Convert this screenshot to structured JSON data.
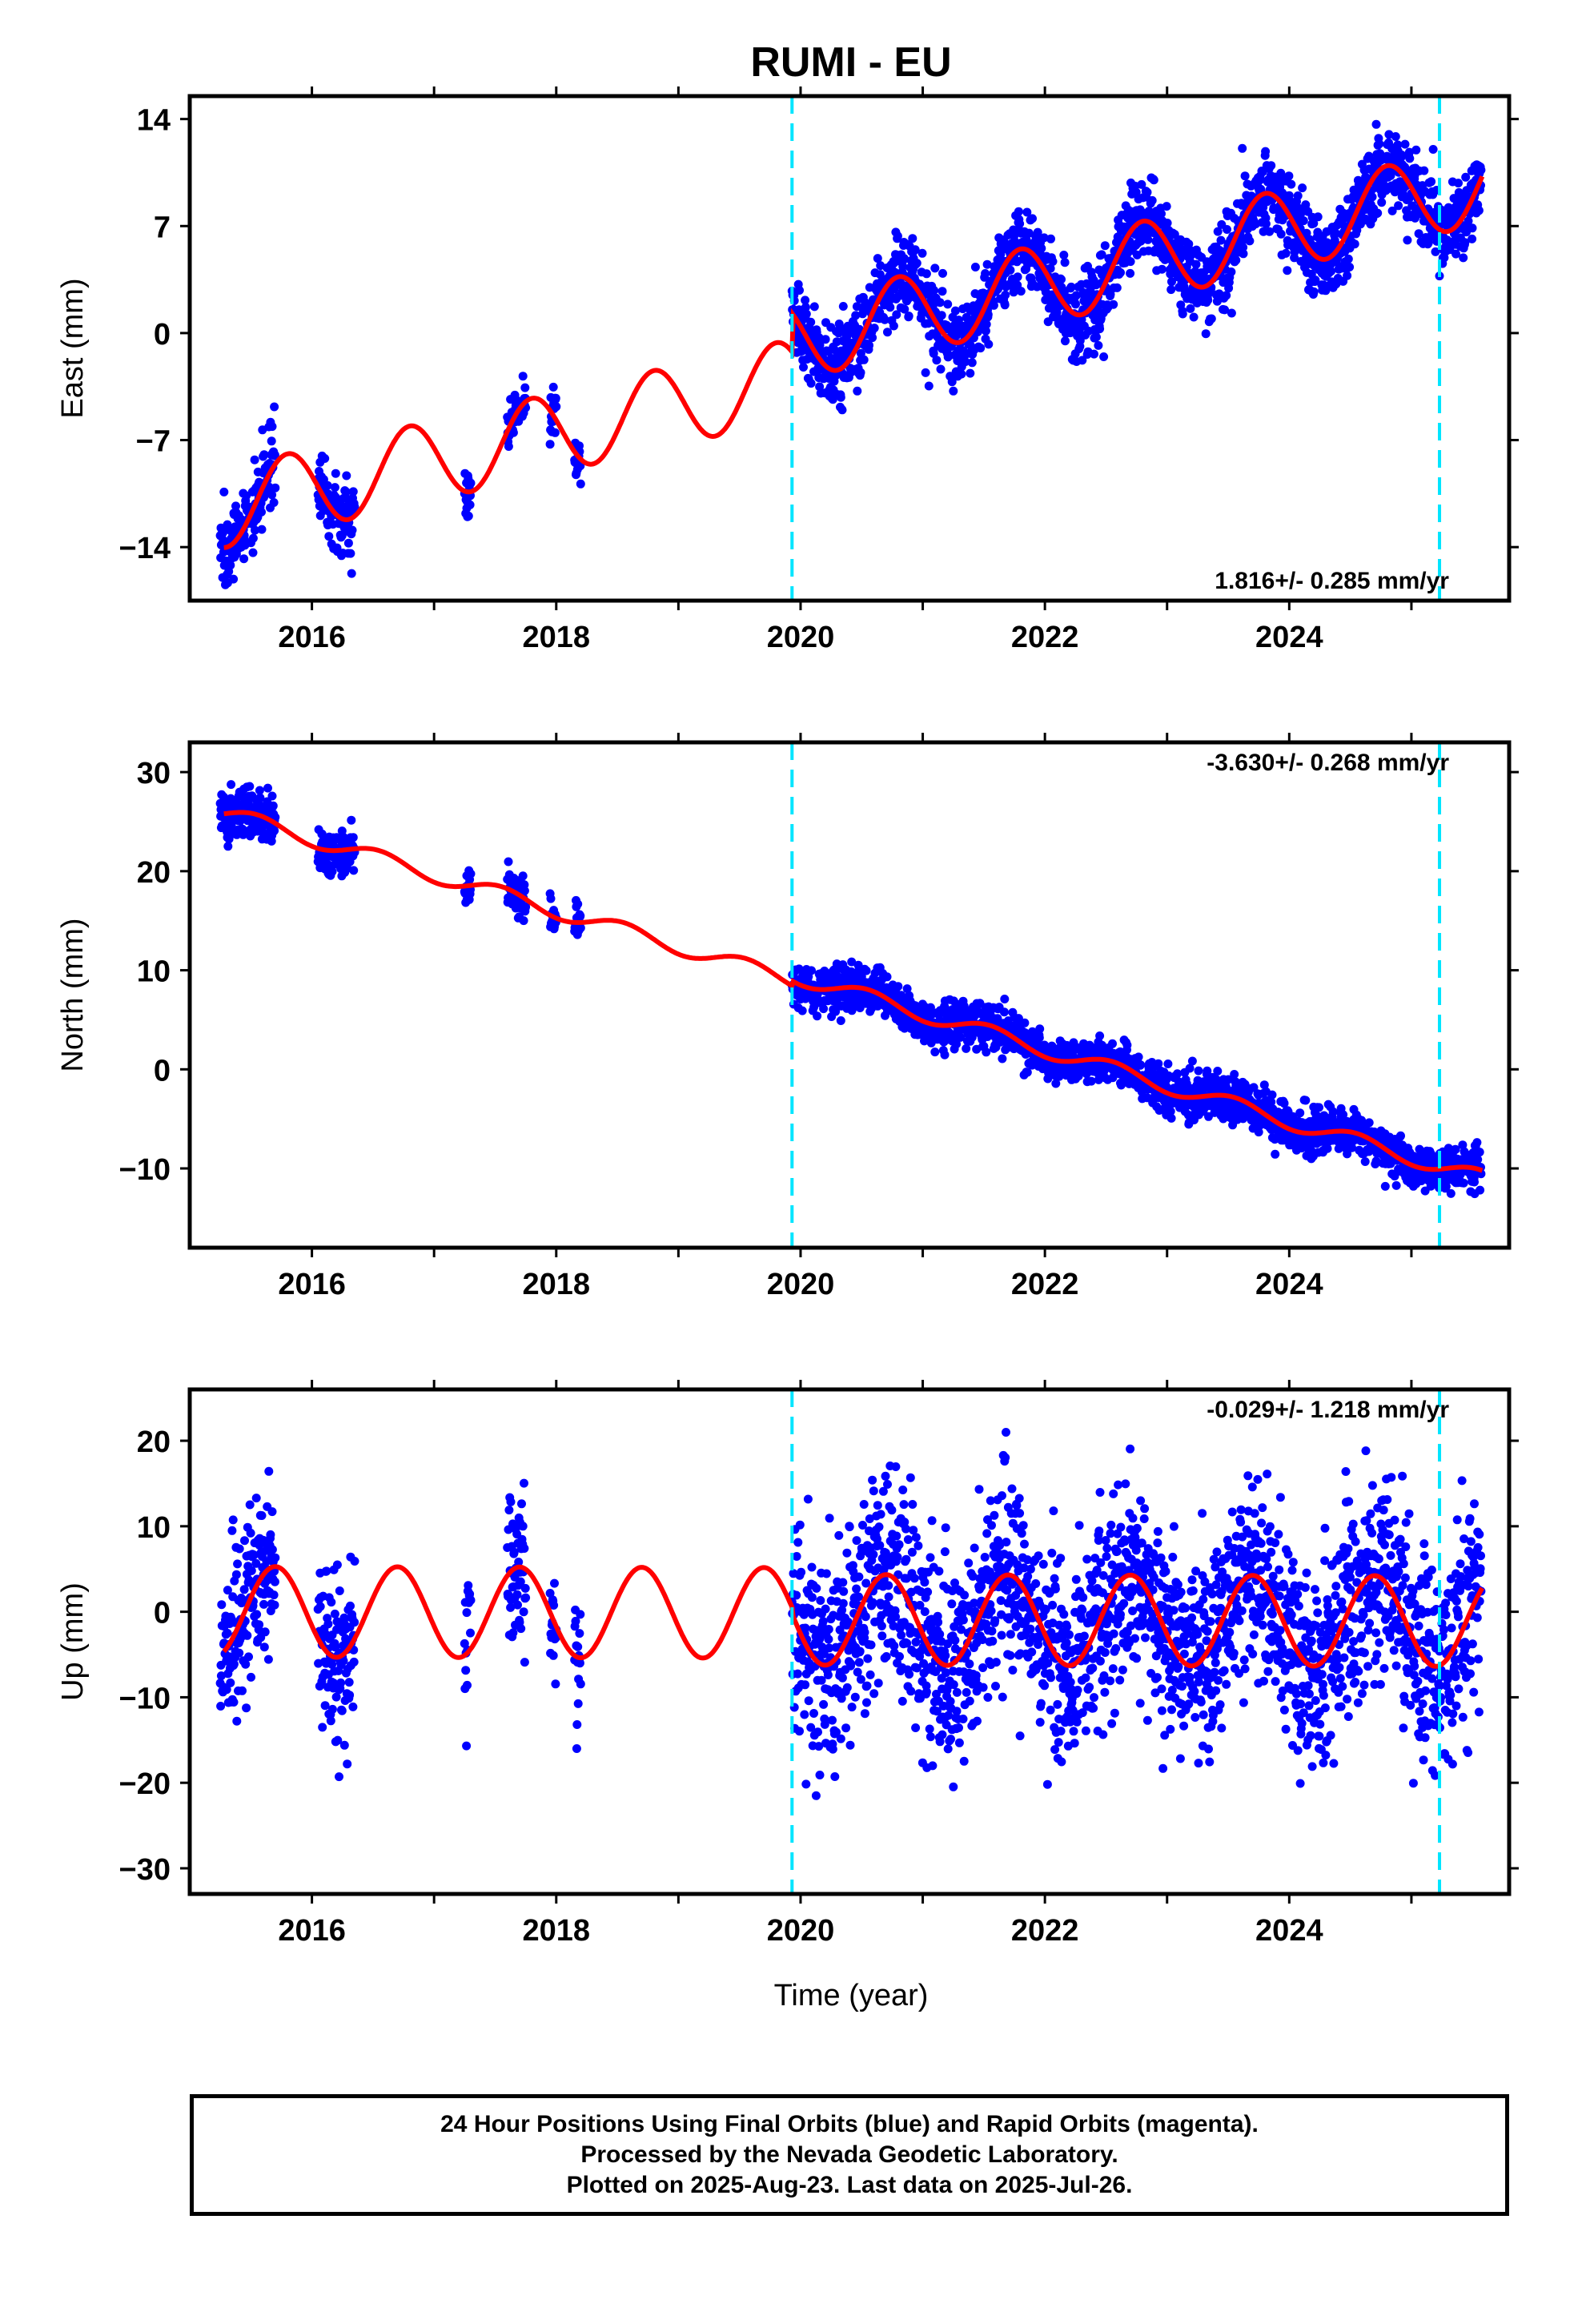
{
  "chart_data": {
    "type": "scatter",
    "title": "RUMI - EU",
    "xlabel": "Time (year)",
    "x_ticks": [
      "2016",
      "2018",
      "2020",
      "2022",
      "2024"
    ],
    "xlim": [
      2015.0,
      2025.8
    ],
    "equipment_change_lines": [
      2019.93,
      2025.23
    ],
    "colors": {
      "points": "#0000ff",
      "fit": "#ff0000",
      "change_lines": "#00e5ff"
    },
    "panels": [
      {
        "name": "east",
        "ylabel": "East (mm)",
        "ylim": [
          -17.5,
          15.5
        ],
        "yticks": [
          14,
          7,
          0,
          -7,
          -14
        ],
        "ytick_labels": [
          "14",
          "7",
          "0",
          "−7",
          "−14"
        ],
        "rate_text": "1.816+/- 0.285 mm/yr",
        "rate_position": "bottom-right",
        "model": {
          "t0": 2015.25,
          "y0": -11.5,
          "slope": 1.816,
          "seasonal_amp": 2.6,
          "seasonal_phase": 0.55,
          "offset_at_2019_93": 2.5
        },
        "data_segments": [
          {
            "start": 2015.25,
            "end": 2015.7,
            "scatter_mm": 1.3
          },
          {
            "start": 2016.05,
            "end": 2016.35,
            "scatter_mm": 1.3
          },
          {
            "start": 2017.25,
            "end": 2017.3,
            "scatter_mm": 0.8
          },
          {
            "start": 2017.6,
            "end": 2017.75,
            "scatter_mm": 0.8
          },
          {
            "start": 2017.95,
            "end": 2018.0,
            "scatter_mm": 0.8
          },
          {
            "start": 2018.15,
            "end": 2018.2,
            "scatter_mm": 0.8
          },
          {
            "start": 2019.93,
            "end": 2025.57,
            "scatter_mm": 1.3
          }
        ]
      },
      {
        "name": "north",
        "ylabel": "North (mm)",
        "ylim": [
          -18,
          33
        ],
        "yticks": [
          30,
          20,
          10,
          0,
          -10
        ],
        "ytick_labels": [
          "30",
          "20",
          "10",
          "0",
          "−10"
        ],
        "rate_text": "-3.630+/- 0.268 mm/yr",
        "rate_position": "top-right",
        "model": {
          "t0": 2015.25,
          "y0": 26.0,
          "slope": -3.63,
          "seasonal_amp": 0.8,
          "seasonal_phase": 0.3,
          "offset_at_2019_93": 0.5
        },
        "data_segments": [
          {
            "start": 2015.25,
            "end": 2015.7,
            "scatter_mm": 1.2
          },
          {
            "start": 2016.05,
            "end": 2016.35,
            "scatter_mm": 1.2
          },
          {
            "start": 2017.25,
            "end": 2017.3,
            "scatter_mm": 1.0
          },
          {
            "start": 2017.6,
            "end": 2017.75,
            "scatter_mm": 1.0
          },
          {
            "start": 2017.95,
            "end": 2018.0,
            "scatter_mm": 1.0
          },
          {
            "start": 2018.15,
            "end": 2018.2,
            "scatter_mm": 1.0
          },
          {
            "start": 2019.93,
            "end": 2025.57,
            "scatter_mm": 1.1
          }
        ]
      },
      {
        "name": "up",
        "ylabel": "Up (mm)",
        "ylim": [
          -33,
          26
        ],
        "yticks": [
          20,
          10,
          0,
          -10,
          -20,
          -30
        ],
        "ytick_labels": [
          "20",
          "10",
          "0",
          "−10",
          "−20",
          "−30"
        ],
        "rate_text": "-0.029+/- 1.218 mm/yr",
        "rate_position": "top-right",
        "model": {
          "t0": 2015.25,
          "y0": 0.0,
          "slope": -0.029,
          "seasonal_amp": 5.3,
          "seasonal_phase": 0.45,
          "offset_at_2019_93": -0.8
        },
        "data_segments": [
          {
            "start": 2015.25,
            "end": 2015.7,
            "scatter_mm": 4.5
          },
          {
            "start": 2016.05,
            "end": 2016.35,
            "scatter_mm": 5.0
          },
          {
            "start": 2017.25,
            "end": 2017.3,
            "scatter_mm": 4.5
          },
          {
            "start": 2017.6,
            "end": 2017.75,
            "scatter_mm": 5.5
          },
          {
            "start": 2017.95,
            "end": 2018.0,
            "scatter_mm": 4.5
          },
          {
            "start": 2018.15,
            "end": 2018.2,
            "scatter_mm": 4.5
          },
          {
            "start": 2019.93,
            "end": 2025.57,
            "scatter_mm": 6.0
          }
        ]
      }
    ]
  },
  "footer": {
    "line1": "24 Hour Positions Using Final Orbits (blue) and Rapid Orbits (magenta).",
    "line2": "Processed by the Nevada Geodetic Laboratory.",
    "line3": "Plotted on 2025-Aug-23. Last data on 2025-Jul-26."
  }
}
